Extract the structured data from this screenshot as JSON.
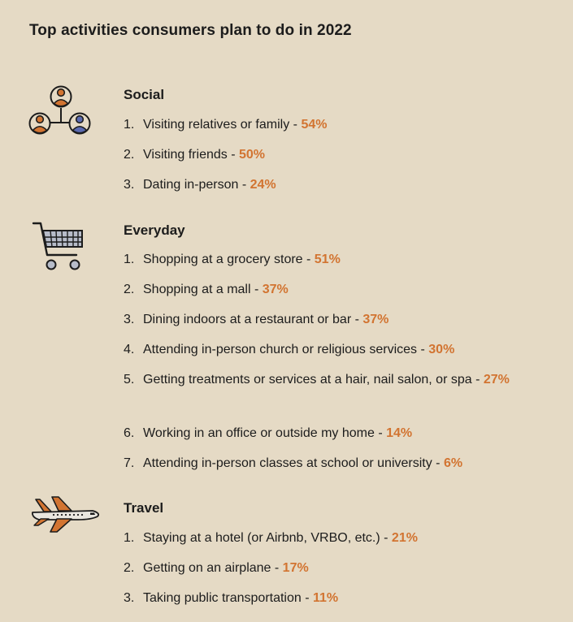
{
  "title": "Top activities consumers plan to do in 2022",
  "colors": {
    "background": "#e5dac5",
    "accent": "#d27431",
    "text": "#1c1c1c"
  },
  "sections": [
    {
      "heading": "Social",
      "icon": "people-network-icon",
      "items": [
        {
          "num": "1.",
          "text": "Visiting relatives or family - ",
          "pct": "54%"
        },
        {
          "num": "2.",
          "text": "Visiting friends - ",
          "pct": "50%"
        },
        {
          "num": "3.",
          "text": "Dating in-person - ",
          "pct": "24%"
        }
      ]
    },
    {
      "heading": "Everyday",
      "icon": "shopping-cart-icon",
      "items": [
        {
          "num": "1.",
          "text": "Shopping at a grocery store - ",
          "pct": "51%"
        },
        {
          "num": "2.",
          "text": "Shopping at a mall - ",
          "pct": "37%"
        },
        {
          "num": "3.",
          "text": "Dining indoors at a restaurant or bar - ",
          "pct": "37%"
        },
        {
          "num": "4.",
          "text": "Attending in-person church or religious services - ",
          "pct": "30%"
        },
        {
          "num": "5.",
          "text": "Getting treatments or services at a hair, nail salon, or spa - ",
          "pct": "27%"
        },
        {
          "num": "6.",
          "text": "Working in an office or outside my home - ",
          "pct": "14%"
        },
        {
          "num": "7.",
          "text": "Attending in-person classes at school or university - ",
          "pct": "6%"
        }
      ]
    },
    {
      "heading": "Travel",
      "icon": "airplane-icon",
      "items": [
        {
          "num": "1.",
          "text": "Staying at a hotel (or Airbnb, VRBO, etc.) - ",
          "pct": "21%"
        },
        {
          "num": "2.",
          "text": "Getting on an airplane - ",
          "pct": "17%"
        },
        {
          "num": "3.",
          "text": "Taking public transportation - ",
          "pct": "11%"
        }
      ]
    }
  ]
}
